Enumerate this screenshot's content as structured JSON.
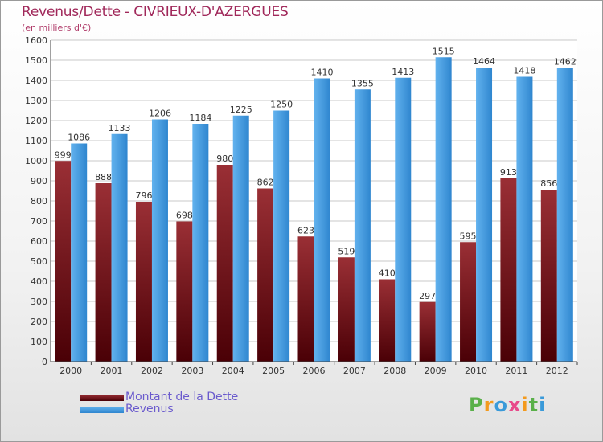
{
  "title": "Revenus/Dette - CIVRIEUX-D'AZERGUES",
  "subtitle": "(en milliers d'€)",
  "logo_text": "Proxiti",
  "colors": {
    "dette": "#7a0f15",
    "revenus": "#3d96de",
    "title": "#a0285a",
    "legend_text": "#6a5acd"
  },
  "legend": [
    {
      "label": "Montant de la Dette",
      "color": "#7a0f15"
    },
    {
      "label": "Revenus",
      "color": "#3d96de"
    }
  ],
  "chart_data": {
    "type": "bar",
    "title": "Revenus/Dette - CIVRIEUX-D'AZERGUES",
    "subtitle": "(en milliers d'€)",
    "xlabel": "",
    "ylabel": "",
    "ylim": [
      0,
      1600
    ],
    "yticks": [
      0,
      100,
      200,
      300,
      400,
      500,
      600,
      700,
      800,
      900,
      1000,
      1100,
      1200,
      1300,
      1400,
      1500,
      1600
    ],
    "grid": true,
    "legend_position": "bottom-left",
    "categories": [
      "2000",
      "2001",
      "2002",
      "2003",
      "2004",
      "2005",
      "2006",
      "2007",
      "2008",
      "2009",
      "2010",
      "2011",
      "2012"
    ],
    "series": [
      {
        "name": "Montant de la Dette",
        "color": "#7a0f15",
        "values": [
          999,
          888,
          796,
          698,
          980,
          862,
          623,
          519,
          410,
          297,
          595,
          913,
          856
        ]
      },
      {
        "name": "Revenus",
        "color": "#3d96de",
        "values": [
          1086,
          1133,
          1206,
          1184,
          1225,
          1250,
          1410,
          1355,
          1413,
          1515,
          1464,
          1418,
          1462
        ]
      }
    ]
  }
}
